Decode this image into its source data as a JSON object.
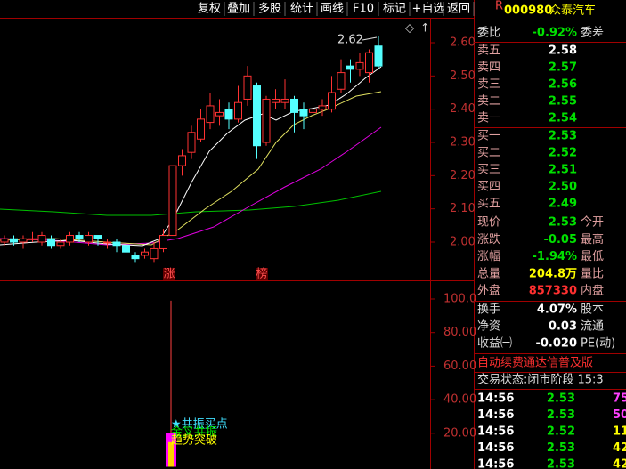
{
  "toolbar": [
    "复权",
    "叠加",
    "多股",
    "统计",
    "画线",
    "F10",
    "标记",
    "+自选",
    "返回"
  ],
  "stock": {
    "marker": "R",
    "code": "000980",
    "name": "众泰汽车"
  },
  "chart": {
    "price_axis": [
      {
        "value": 2.6,
        "label": "2.60"
      },
      {
        "value": 2.5,
        "label": "2.50"
      },
      {
        "value": 2.4,
        "label": "2.40"
      },
      {
        "value": 2.3,
        "label": "2.30"
      },
      {
        "value": 2.2,
        "label": "2.20"
      },
      {
        "value": 2.1,
        "label": "2.10"
      },
      {
        "value": 2.0,
        "label": "2.00"
      }
    ],
    "high_label": "2.62",
    "tags": [
      "涨",
      "榜"
    ],
    "candles": [
      {
        "open": 2.0,
        "close": 2.01,
        "high": 2.02,
        "low": 1.99
      },
      {
        "open": 2.01,
        "close": 2.0,
        "high": 2.02,
        "low": 1.99
      },
      {
        "open": 2.0,
        "close": 2.01,
        "high": 2.02,
        "low": 1.98
      },
      {
        "open": 2.01,
        "close": 2.01,
        "high": 2.03,
        "low": 2.0
      },
      {
        "open": 2.0,
        "close": 2.02,
        "high": 2.03,
        "low": 1.99
      },
      {
        "open": 2.01,
        "close": 1.99,
        "high": 2.02,
        "low": 1.98
      },
      {
        "open": 1.99,
        "close": 2.0,
        "high": 2.01,
        "low": 1.98
      },
      {
        "open": 2.0,
        "close": 2.02,
        "high": 2.03,
        "low": 1.99
      },
      {
        "open": 2.02,
        "close": 2.01,
        "high": 2.03,
        "low": 2.0
      },
      {
        "open": 2.0,
        "close": 2.02,
        "high": 2.03,
        "low": 1.99
      },
      {
        "open": 2.02,
        "close": 2.01,
        "high": 2.02,
        "low": 1.99
      },
      {
        "open": 2.0,
        "close": 2.0,
        "high": 2.01,
        "low": 1.98
      },
      {
        "open": 2.0,
        "close": 1.99,
        "high": 2.01,
        "low": 1.97
      },
      {
        "open": 1.99,
        "close": 1.97,
        "high": 2.0,
        "low": 1.96
      },
      {
        "open": 1.96,
        "close": 1.95,
        "high": 1.97,
        "low": 1.94
      },
      {
        "open": 1.96,
        "close": 1.97,
        "high": 1.98,
        "low": 1.95
      },
      {
        "open": 1.95,
        "close": 1.98,
        "high": 2.0,
        "low": 1.94
      },
      {
        "open": 1.98,
        "close": 2.02,
        "high": 2.04,
        "low": 1.97
      },
      {
        "open": 2.02,
        "close": 2.23,
        "high": 2.23,
        "low": 2.02
      },
      {
        "open": 2.23,
        "close": 2.26,
        "high": 2.28,
        "low": 2.2
      },
      {
        "open": 2.27,
        "close": 2.33,
        "high": 2.35,
        "low": 2.25
      },
      {
        "open": 2.31,
        "close": 2.37,
        "high": 2.4,
        "low": 2.3
      },
      {
        "open": 2.36,
        "close": 2.41,
        "high": 2.45,
        "low": 2.34
      },
      {
        "open": 2.38,
        "close": 2.39,
        "high": 2.43,
        "low": 2.35
      },
      {
        "open": 2.4,
        "close": 2.37,
        "high": 2.42,
        "low": 2.34
      },
      {
        "open": 2.37,
        "close": 2.42,
        "high": 2.47,
        "low": 2.36
      },
      {
        "open": 2.43,
        "close": 2.5,
        "high": 2.53,
        "low": 2.41
      },
      {
        "open": 2.47,
        "close": 2.29,
        "high": 2.48,
        "low": 2.25
      },
      {
        "open": 2.3,
        "close": 2.43,
        "high": 2.44,
        "low": 2.29
      },
      {
        "open": 2.42,
        "close": 2.43,
        "high": 2.46,
        "low": 2.4
      },
      {
        "open": 2.42,
        "close": 2.43,
        "high": 2.49,
        "low": 2.4
      },
      {
        "open": 2.43,
        "close": 2.39,
        "high": 2.44,
        "low": 2.33
      },
      {
        "open": 2.4,
        "close": 2.38,
        "high": 2.42,
        "low": 2.34
      },
      {
        "open": 2.39,
        "close": 2.4,
        "high": 2.42,
        "low": 2.36
      },
      {
        "open": 2.4,
        "close": 2.41,
        "high": 2.43,
        "low": 2.38
      },
      {
        "open": 2.4,
        "close": 2.45,
        "high": 2.5,
        "low": 2.39
      },
      {
        "open": 2.46,
        "close": 2.51,
        "high": 2.55,
        "low": 2.45
      },
      {
        "open": 2.53,
        "close": 2.52,
        "high": 2.55,
        "low": 2.48
      },
      {
        "open": 2.52,
        "close": 2.54,
        "high": 2.57,
        "low": 2.5
      },
      {
        "open": 2.51,
        "close": 2.57,
        "high": 2.58,
        "low": 2.48
      },
      {
        "open": 2.59,
        "close": 2.53,
        "high": 2.62,
        "low": 2.52
      }
    ]
  },
  "indicator": {
    "axis": [
      {
        "value": 100,
        "label": "100.0"
      },
      {
        "value": 80,
        "label": "80.00"
      },
      {
        "value": 60,
        "label": "60.00"
      },
      {
        "value": 40,
        "label": "40.00"
      },
      {
        "value": 20,
        "label": "20.00"
      }
    ],
    "spike_high": 99,
    "bar_high": 20,
    "signals": [
      "★共振买点",
      "金叉共振",
      "趋势突破"
    ]
  },
  "quote": {
    "order_ratio": {
      "label": "委比",
      "value": "-0.92%",
      "label2": "委差"
    },
    "asks": [
      {
        "label": "卖五",
        "price": "2.58"
      },
      {
        "label": "卖四",
        "price": "2.57"
      },
      {
        "label": "卖三",
        "price": "2.56"
      },
      {
        "label": "卖二",
        "price": "2.55"
      },
      {
        "label": "卖一",
        "price": "2.54"
      }
    ],
    "bids": [
      {
        "label": "买一",
        "price": "2.53"
      },
      {
        "label": "买二",
        "price": "2.52"
      },
      {
        "label": "买三",
        "price": "2.51"
      },
      {
        "label": "买四",
        "price": "2.50"
      },
      {
        "label": "买五",
        "price": "2.49"
      }
    ],
    "stats": [
      {
        "label": "现价",
        "value": "2.53",
        "label2": "今开"
      },
      {
        "label": "涨跌",
        "value": "-0.05",
        "label2": "最高"
      },
      {
        "label": "涨幅",
        "value": "-1.94%",
        "label2": "最低"
      },
      {
        "label": "总量",
        "value": "204.8万",
        "label2": "量比"
      },
      {
        "label": "外盘",
        "value": "857330",
        "label2": "内盘"
      }
    ],
    "fundamentals": [
      {
        "label": "换手",
        "value": "4.07%",
        "label2": "股本"
      },
      {
        "label": "净资",
        "value": "0.03",
        "label2": "流通"
      },
      {
        "label": "收益㈠",
        "value": "-0.020",
        "label2": "PE(动)"
      }
    ],
    "banner": "自动续费通达信普及版",
    "status": "交易状态:闭市阶段 15:3",
    "ticks": [
      {
        "time": "14:56",
        "price": "2.53",
        "volume": "75"
      },
      {
        "time": "14:56",
        "price": "2.53",
        "volume": "50"
      },
      {
        "time": "14:56",
        "price": "2.52",
        "volume": "11"
      },
      {
        "time": "14:56",
        "price": "2.53",
        "volume": "42"
      },
      {
        "time": "14:56",
        "price": "2.53",
        "volume": "42"
      }
    ]
  }
}
